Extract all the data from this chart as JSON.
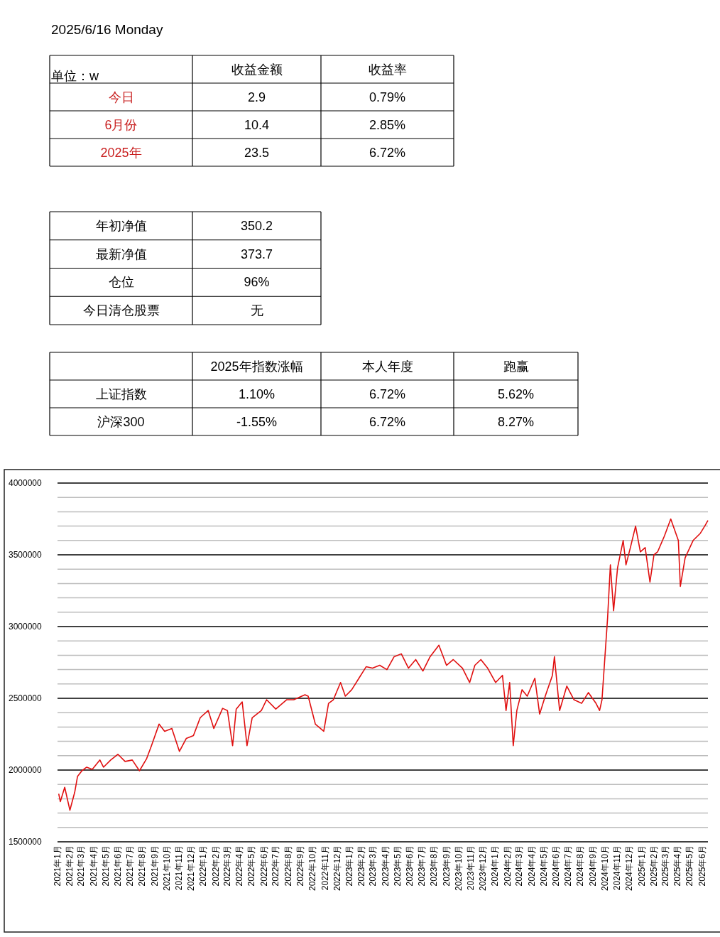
{
  "chart_data": [
    {
      "type": "other",
      "title": "2025/6/16  Monday",
      "annotations": [
        "单位：w"
      ],
      "categories": [
        "收益金额",
        "收益率"
      ],
      "y_categories": [
        "今日",
        "6月份",
        "2025年"
      ],
      "color": "#c81e1e",
      "cell_labels": [
        [
          "2.9",
          "0.79%"
        ],
        [
          "10.4",
          "2.85%"
        ],
        [
          "23.5",
          "6.72%"
        ]
      ]
    },
    {
      "type": "other",
      "y_categories": [
        "年初净值",
        "最新净值",
        "仓位",
        "今日清仓股票"
      ],
      "cell_labels": [
        [
          "350.2"
        ],
        [
          "373.7"
        ],
        [
          "96%"
        ],
        [
          "无"
        ]
      ]
    },
    {
      "type": "other",
      "categories": [
        "2025年指数涨幅",
        "本人年度",
        "跑赢"
      ],
      "y_categories": [
        "上证指数",
        "沪深300"
      ],
      "cell_labels": [
        [
          "1.10%",
          "6.72%",
          "5.62%"
        ],
        [
          "-1.55%",
          "6.72%",
          "8.27%"
        ]
      ]
    },
    {
      "type": "line",
      "grid": "y",
      "xlim": [
        "2021-01-01",
        "2025-06-16"
      ],
      "ylim": [
        1500000,
        4000000
      ],
      "yticks": [
        1500000,
        {
          "value": 1600000,
          "label": null
        },
        {
          "value": 1700000,
          "label": null
        },
        {
          "value": 1800000,
          "label": null
        },
        {
          "value": 1900000,
          "label": null
        },
        2000000,
        {
          "value": 2100000,
          "label": null
        },
        {
          "value": 2200000,
          "label": null
        },
        {
          "value": 2300000,
          "label": null
        },
        {
          "value": 2400000,
          "label": null
        },
        2500000,
        {
          "value": 2600000,
          "label": null
        },
        {
          "value": 2700000,
          "label": null
        },
        {
          "value": 2800000,
          "label": null
        },
        {
          "value": 2900000,
          "label": null
        },
        3000000,
        {
          "value": 3100000,
          "label": null
        },
        {
          "value": 3200000,
          "label": null
        },
        {
          "value": 3300000,
          "label": null
        },
        {
          "value": 3400000,
          "label": null
        },
        3500000,
        {
          "value": 3600000,
          "label": null
        },
        {
          "value": 3700000,
          "label": null
        },
        {
          "value": 3800000,
          "label": null
        },
        {
          "value": 3900000,
          "label": null
        },
        4000000
      ],
      "xticks": [
        {
          "value": "2021-01",
          "label": "2021年1月"
        },
        {
          "value": "2021-02",
          "label": "2021年2月"
        },
        {
          "value": "2021-03",
          "label": "2021年3月"
        },
        {
          "value": "2021-04",
          "label": "2021年4月"
        },
        {
          "value": "2021-05",
          "label": "2021年5月"
        },
        {
          "value": "2021-06",
          "label": "2021年6月"
        },
        {
          "value": "2021-07",
          "label": "2021年7月"
        },
        {
          "value": "2021-08",
          "label": "2021年8月"
        },
        {
          "value": "2021-09",
          "label": "2021年9月"
        },
        {
          "value": "2021-10",
          "label": "2021年10月"
        },
        {
          "value": "2021-11",
          "label": "2021年11月"
        },
        {
          "value": "2021-12",
          "label": "2021年12月"
        },
        {
          "value": "2022-01",
          "label": "2022年1月"
        },
        {
          "value": "2022-02",
          "label": "2022年2月"
        },
        {
          "value": "2022-03",
          "label": "2022年3月"
        },
        {
          "value": "2022-04",
          "label": "2022年4月"
        },
        {
          "value": "2022-05",
          "label": "2022年5月"
        },
        {
          "value": "2022-06",
          "label": "2022年6月"
        },
        {
          "value": "2022-07",
          "label": "2022年7月"
        },
        {
          "value": "2022-08",
          "label": "2022年8月"
        },
        {
          "value": "2022-09",
          "label": "2022年9月"
        },
        {
          "value": "2022-10",
          "label": "2022年10月"
        },
        {
          "value": "2022-11",
          "label": "2022年11月"
        },
        {
          "value": "2022-12",
          "label": "2022年12月"
        },
        {
          "value": "2023-01",
          "label": "2023年1月"
        },
        {
          "value": "2023-02",
          "label": "2023年2月"
        },
        {
          "value": "2023-03",
          "label": "2023年3月"
        },
        {
          "value": "2023-04",
          "label": "2023年4月"
        },
        {
          "value": "2023-05",
          "label": "2023年5月"
        },
        {
          "value": "2023-06",
          "label": "2023年6月"
        },
        {
          "value": "2023-07",
          "label": "2023年7月"
        },
        {
          "value": "2023-08",
          "label": "2023年8月"
        },
        {
          "value": "2023-09",
          "label": "2023年9月"
        },
        {
          "value": "2023-10",
          "label": "2023年10月"
        },
        {
          "value": "2023-11",
          "label": "2023年11月"
        },
        {
          "value": "2023-12",
          "label": "2023年12月"
        },
        {
          "value": "2024-01",
          "label": "2024年1月"
        },
        {
          "value": "2024-02",
          "label": "2024年2月"
        },
        {
          "value": "2024-03",
          "label": "2024年3月"
        },
        {
          "value": "2024-04",
          "label": "2024年4月"
        },
        {
          "value": "2024-05",
          "label": "2024年5月"
        },
        {
          "value": "2024-06",
          "label": "2024年6月"
        },
        {
          "value": "2024-07",
          "label": "2024年7月"
        },
        {
          "value": "2024-08",
          "label": "2024年8月"
        },
        {
          "value": "2024-09",
          "label": "2024年9月"
        },
        {
          "value": "2024-10",
          "label": "2024年10月"
        },
        {
          "value": "2024-11",
          "label": "2024年11月"
        },
        {
          "value": "2024-12",
          "label": "2024年12月"
        },
        {
          "value": "2025-01",
          "label": "2025年1月"
        },
        {
          "value": "2025-02",
          "label": "2025年2月"
        },
        {
          "value": "2025-03",
          "label": "2025年3月"
        },
        {
          "value": "2025-04",
          "label": "2025年4月"
        },
        {
          "value": "2025-05",
          "label": "2025年5月"
        },
        {
          "value": "2025-06",
          "label": "2025年6月"
        }
      ],
      "x": [
        "2021-01-04",
        "2021-01-08",
        "2021-01-19",
        "2021-02-01",
        "2021-02-13",
        "2021-02-20",
        "2021-03-03",
        "2021-03-15",
        "2021-03-29",
        "2021-04-17",
        "2021-04-26",
        "2021-05-14",
        "2021-06-01",
        "2021-06-19",
        "2021-07-07",
        "2021-07-25",
        "2021-08-12",
        "2021-08-24",
        "2021-09-12",
        "2021-09-26",
        "2021-10-14",
        "2021-11-02",
        "2021-11-19",
        "2021-12-07",
        "2021-12-24",
        "2022-01-13",
        "2022-01-27",
        "2022-02-18",
        "2022-03-02",
        "2022-03-15",
        "2022-03-24",
        "2022-04-08",
        "2022-04-20",
        "2022-05-03",
        "2022-05-26",
        "2022-06-08",
        "2022-07-01",
        "2022-07-28",
        "2022-08-15",
        "2022-09-12",
        "2022-09-20",
        "2022-10-08",
        "2022-10-29",
        "2022-11-10",
        "2022-11-22",
        "2022-12-10",
        "2022-12-22",
        "2023-01-07",
        "2023-01-25",
        "2023-02-12",
        "2023-02-28",
        "2023-03-18",
        "2023-04-05",
        "2023-04-23",
        "2023-05-11",
        "2023-05-29",
        "2023-06-16",
        "2023-07-04",
        "2023-07-22",
        "2023-08-13",
        "2023-09-01",
        "2023-09-18",
        "2023-10-11",
        "2023-10-29",
        "2023-11-11",
        "2023-11-26",
        "2023-12-13",
        "2024-01-02",
        "2024-01-19",
        "2024-01-28",
        "2024-02-06",
        "2024-02-15",
        "2024-02-24",
        "2024-03-08",
        "2024-03-21",
        "2024-04-09",
        "2024-04-21",
        "2024-05-05",
        "2024-05-23",
        "2024-05-28",
        "2024-06-10",
        "2024-06-28",
        "2024-07-16",
        "2024-08-04",
        "2024-08-21",
        "2024-09-09",
        "2024-09-18",
        "2024-09-24",
        "2024-10-08",
        "2024-10-15",
        "2024-10-23",
        "2024-11-02",
        "2024-11-16",
        "2024-11-23",
        "2024-12-04",
        "2024-12-17",
        "2024-12-29",
        "2025-01-10",
        "2025-01-22",
        "2025-02-01",
        "2025-02-10",
        "2025-02-27",
        "2025-03-15",
        "2025-04-03",
        "2025-04-08",
        "2025-04-20",
        "2025-05-10",
        "2025-05-28",
        "2025-06-08",
        "2025-06-16"
      ],
      "series": [
        {
          "color": "#e01010",
          "values": [
            1835000,
            1780000,
            1880000,
            1720000,
            1845000,
            1955000,
            1995000,
            2020000,
            2005000,
            2070000,
            2020000,
            2070000,
            2110000,
            2060000,
            2070000,
            1995000,
            2080000,
            2170000,
            2320000,
            2270000,
            2290000,
            2130000,
            2220000,
            2240000,
            2365000,
            2415000,
            2290000,
            2430000,
            2415000,
            2170000,
            2425000,
            2475000,
            2170000,
            2365000,
            2415000,
            2490000,
            2425000,
            2490000,
            2490000,
            2525000,
            2515000,
            2320000,
            2270000,
            2465000,
            2490000,
            2610000,
            2515000,
            2560000,
            2640000,
            2720000,
            2710000,
            2730000,
            2700000,
            2790000,
            2810000,
            2710000,
            2770000,
            2690000,
            2790000,
            2870000,
            2730000,
            2770000,
            2710000,
            2610000,
            2730000,
            2770000,
            2710000,
            2610000,
            2660000,
            2415000,
            2610000,
            2170000,
            2415000,
            2560000,
            2515000,
            2640000,
            2390000,
            2515000,
            2660000,
            2790000,
            2415000,
            2585000,
            2490000,
            2465000,
            2540000,
            2465000,
            2415000,
            2490000,
            3060000,
            3430000,
            3110000,
            3410000,
            3600000,
            3430000,
            3550000,
            3700000,
            3520000,
            3550000,
            3310000,
            3500000,
            3520000,
            3630000,
            3750000,
            3600000,
            3280000,
            3480000,
            3600000,
            3650000,
            3700000,
            3740000
          ]
        }
      ]
    }
  ]
}
